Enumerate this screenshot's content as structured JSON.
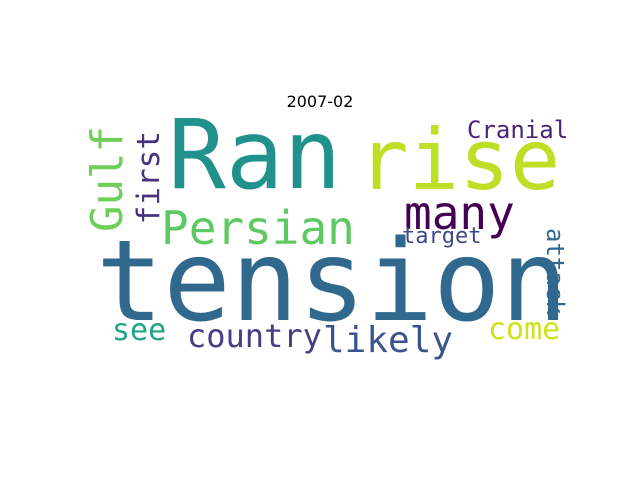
{
  "title": "2007-02",
  "words": [
    {
      "text": "Ran",
      "color": "#21918c"
    },
    {
      "text": "rise",
      "color": "#bddf26"
    },
    {
      "text": "tension",
      "color": "#31688e"
    },
    {
      "text": "Gulf",
      "color": "#6ece58"
    },
    {
      "text": "first",
      "color": "#46327e"
    },
    {
      "text": "Persian",
      "color": "#5ec962"
    },
    {
      "text": "many",
      "color": "#440154"
    },
    {
      "text": "Cranial",
      "color": "#482475"
    },
    {
      "text": "target",
      "color": "#3e4989"
    },
    {
      "text": "attack",
      "color": "#31688e"
    },
    {
      "text": "see",
      "color": "#20a486"
    },
    {
      "text": "country",
      "color": "#433e85"
    },
    {
      "text": "likely",
      "color": "#39568c"
    },
    {
      "text": "come",
      "color": "#d0e11c"
    }
  ]
}
